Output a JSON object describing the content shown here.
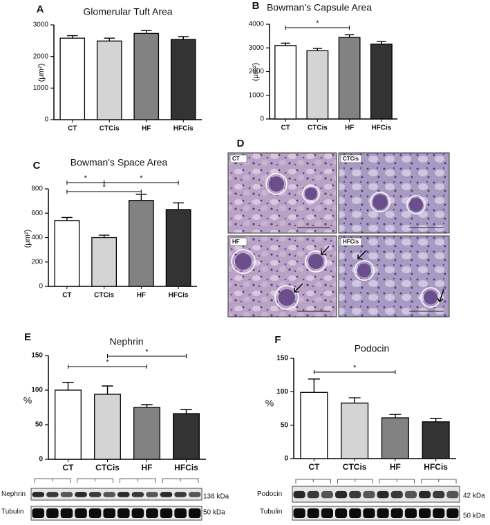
{
  "chart_data": [
    {
      "type": "bar",
      "panel": "A",
      "title": "Glomerular Tuft Area",
      "ylabel": "(μm²)",
      "categories": [
        "CT",
        "CTCis",
        "HF",
        "HFCis"
      ],
      "values": [
        2580,
        2490,
        2730,
        2540
      ],
      "errors": [
        80,
        90,
        90,
        90
      ],
      "colors": [
        "#ffffff",
        "#d4d4d4",
        "#828282",
        "#333333"
      ],
      "ylim": [
        0,
        3000
      ],
      "yticks": [
        0,
        1000,
        2000,
        3000
      ],
      "significance": []
    },
    {
      "type": "bar",
      "panel": "B",
      "title": "Bowman's Capsule Area",
      "ylabel": "(μm²)",
      "categories": [
        "CT",
        "CTCis",
        "HF",
        "HFCis"
      ],
      "values": [
        3100,
        2880,
        3440,
        3160
      ],
      "errors": [
        100,
        100,
        120,
        120
      ],
      "colors": [
        "#ffffff",
        "#d4d4d4",
        "#828282",
        "#333333"
      ],
      "ylim": [
        0,
        4000
      ],
      "yticks": [
        0,
        1000,
        2000,
        3000,
        4000
      ],
      "significance": [
        {
          "pair": [
            0,
            2
          ],
          "label": "*"
        }
      ]
    },
    {
      "type": "bar",
      "panel": "C",
      "title": "Bowman's Space Area",
      "ylabel": "(μm²)",
      "categories": [
        "CT",
        "CTCis",
        "HF",
        "HFCis"
      ],
      "values": [
        540,
        400,
        705,
        630
      ],
      "errors": [
        25,
        20,
        50,
        55
      ],
      "colors": [
        "#ffffff",
        "#d4d4d4",
        "#828282",
        "#333333"
      ],
      "ylim": [
        0,
        800
      ],
      "yticks": [
        0,
        200,
        400,
        600,
        800
      ],
      "significance": [
        {
          "pair": [
            0,
            1
          ],
          "label": "*"
        },
        {
          "pair": [
            1,
            3
          ],
          "label": "*"
        },
        {
          "pair": [
            0,
            2
          ],
          "label": "*"
        }
      ]
    },
    {
      "type": "bar",
      "panel": "E",
      "title": "Nephrin",
      "ylabel": "%",
      "categories": [
        "CT",
        "CTCis",
        "HF",
        "HFCis"
      ],
      "values": [
        100,
        94,
        75,
        66
      ],
      "errors": [
        11,
        12,
        4,
        6
      ],
      "colors": [
        "#ffffff",
        "#d4d4d4",
        "#828282",
        "#333333"
      ],
      "ylim": [
        0,
        150
      ],
      "yticks": [
        0,
        50,
        100,
        150
      ],
      "significance": [
        {
          "pair": [
            1,
            3
          ],
          "label": "*"
        },
        {
          "pair": [
            0,
            2
          ],
          "label": "*"
        }
      ]
    },
    {
      "type": "bar",
      "panel": "F",
      "title": "Podocin",
      "ylabel": "%",
      "categories": [
        "CT",
        "CTCis",
        "HF",
        "HFCis"
      ],
      "values": [
        99,
        83,
        61,
        55
      ],
      "errors": [
        20,
        8,
        5,
        5
      ],
      "colors": [
        "#ffffff",
        "#d4d4d4",
        "#828282",
        "#333333"
      ],
      "ylim": [
        0,
        150
      ],
      "yticks": [
        0,
        50,
        100,
        150
      ],
      "significance": [
        {
          "pair": [
            0,
            2
          ],
          "label": "*"
        }
      ]
    }
  ],
  "micrographs": {
    "panel": "D",
    "labels": [
      "CT",
      "CTCis",
      "HF",
      "HFCis"
    ]
  },
  "blots": [
    {
      "target": "Nephrin",
      "target_size": "138 kDa",
      "control": "Tubulin",
      "control_size": "50 kDa"
    },
    {
      "target": "Podocin",
      "target_size": "42 kDa",
      "control": "Tubulin",
      "control_size": "50 kDa"
    }
  ]
}
